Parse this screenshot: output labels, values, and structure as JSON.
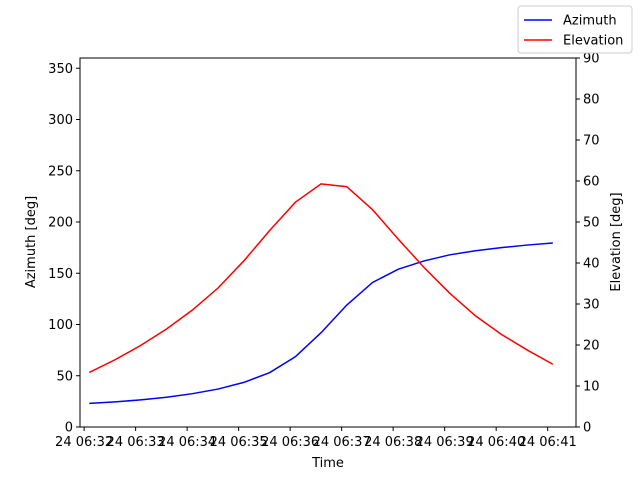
{
  "chart_data": {
    "type": "line",
    "title": "",
    "xlabel": "Time",
    "ylabel_left": "Azimuth [deg]",
    "ylabel_right": "Elevation [deg]",
    "ylim_left": [
      0,
      360
    ],
    "ylim_right": [
      0,
      90
    ],
    "yticks_left": [
      0,
      50,
      100,
      150,
      200,
      250,
      300,
      350
    ],
    "yticks_right": [
      0,
      10,
      20,
      30,
      40,
      50,
      60,
      70,
      80,
      90
    ],
    "xlim": [
      -0.08,
      9.55
    ],
    "xticks": [
      {
        "value": 0,
        "label": "24 06:32"
      },
      {
        "value": 1,
        "label": "24 06:33"
      },
      {
        "value": 2,
        "label": "24 06:34"
      },
      {
        "value": 3,
        "label": "24 06:35"
      },
      {
        "value": 4,
        "label": "24 06:36"
      },
      {
        "value": 5,
        "label": "24 06:37"
      },
      {
        "value": 6,
        "label": "24 06:38"
      },
      {
        "value": 7,
        "label": "24 06:39"
      },
      {
        "value": 8,
        "label": "24 06:40"
      },
      {
        "value": 9,
        "label": "24 06:41"
      }
    ],
    "grid": false,
    "legend": "top-right",
    "series": [
      {
        "name": "Azimuth",
        "axis": "left",
        "color": "#0000ff",
        "x": [
          0.1,
          0.6,
          1.1,
          1.6,
          2.1,
          2.6,
          3.1,
          3.6,
          4.1,
          4.6,
          5.1,
          5.6,
          6.1,
          6.6,
          7.1,
          7.6,
          8.1,
          8.6,
          9.1
        ],
        "y": [
          23,
          24.5,
          26.5,
          29,
          32.5,
          37,
          43.5,
          53,
          68.5,
          92,
          119,
          141,
          154,
          162,
          168,
          172,
          175,
          177.5,
          179.5
        ]
      },
      {
        "name": "Elevation",
        "axis": "right",
        "color": "#ff0000",
        "x": [
          0.1,
          0.6,
          1.1,
          1.6,
          2.1,
          2.6,
          3.1,
          3.6,
          4.1,
          4.6,
          5.1,
          5.6,
          6.1,
          6.6,
          7.1,
          7.6,
          8.1,
          8.6,
          9.1
        ],
        "y": [
          13.3,
          16.4,
          19.9,
          23.9,
          28.5,
          33.9,
          40.5,
          47.9,
          54.8,
          59.3,
          58.6,
          53,
          45.8,
          38.9,
          32.6,
          27.1,
          22.6,
          18.8,
          15.3
        ]
      }
    ]
  }
}
